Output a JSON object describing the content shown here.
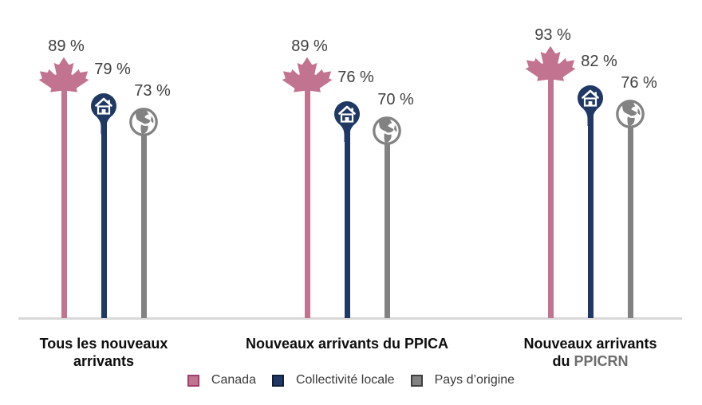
{
  "chart_data": {
    "type": "bar",
    "variant": "lollipop-pictogram",
    "title": "",
    "unit": "%",
    "value_suffix": " %",
    "categories": [
      {
        "text": "Tous les nouveaux arrivants",
        "muted": ""
      },
      {
        "text": "Nouveaux arrivants du PPICA",
        "muted": ""
      },
      {
        "text": "Nouveaux arrivants du",
        "muted": "PPICRN"
      }
    ],
    "series": [
      {
        "name": "Canada",
        "icon": "maple-leaf-icon",
        "color": "#C2738F",
        "swatch_border": "#A13E6C",
        "values": [
          89,
          89,
          93
        ]
      },
      {
        "name": "Collectivité locale",
        "icon": "house-pin-icon",
        "color": "#1F3864",
        "swatch_border": "#111F38",
        "values": [
          79,
          76,
          82
        ]
      },
      {
        "name": "Pays d’origine",
        "icon": "globe-icon",
        "color": "#828282",
        "swatch_border": "#3F3F3F",
        "values": [
          73,
          70,
          76
        ]
      }
    ],
    "data_labels": [
      "89 %",
      "79 %",
      "73 %",
      "89 %",
      "76 %",
      "70 %",
      "93 %",
      "82 %",
      "76 %"
    ],
    "ylim": [
      0,
      118
    ],
    "grid": false,
    "legend_position": "bottom",
    "axis": {
      "baseline_color": "#D8D8D8"
    },
    "value_label_color": "#404040",
    "category_label_color": "#0D0D0D",
    "muted_label_color": "#6E6E6E"
  }
}
